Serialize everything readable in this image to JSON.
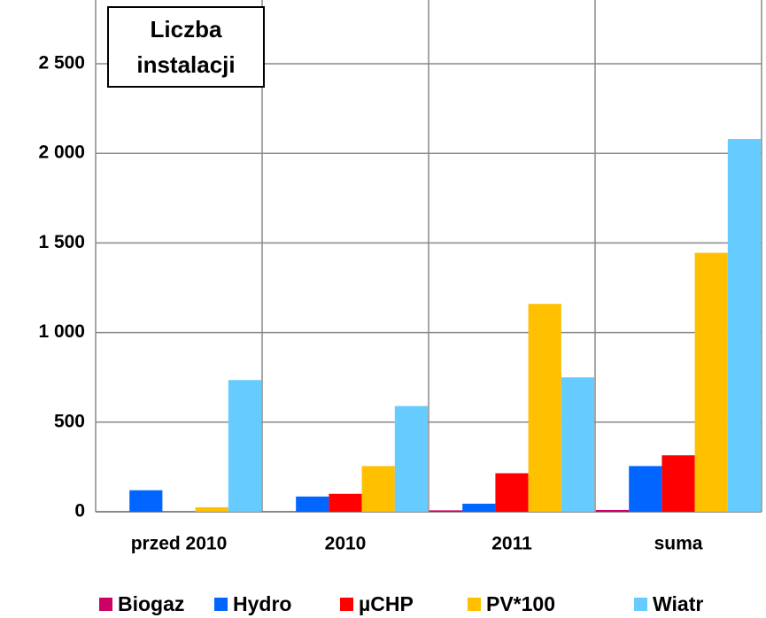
{
  "chart_data": {
    "type": "bar",
    "title": [
      "Liczba",
      "instalacji"
    ],
    "categories": [
      "przed 2010",
      "2010",
      "2011",
      "suma"
    ],
    "series": [
      {
        "name": "Biogaz",
        "color": "#cc0066",
        "values": [
          0,
          0,
          8,
          10
        ]
      },
      {
        "name": "Hydro",
        "color": "#0066ff",
        "values": [
          120,
          85,
          45,
          255
        ]
      },
      {
        "name": "µCHP",
        "color": "#ff0000",
        "values": [
          0,
          100,
          215,
          315
        ]
      },
      {
        "name": "PV*100",
        "color": "#ffc000",
        "values": [
          25,
          255,
          1160,
          1445
        ]
      },
      {
        "name": "Wiatr",
        "color": "#66ccff",
        "values": [
          735,
          590,
          750,
          2080
        ]
      }
    ],
    "ylim": [
      0,
      2500
    ],
    "yticks": [
      0,
      500,
      {
        "value": 1000,
        "label": "1 000"
      },
      {
        "value": 1500,
        "label": "1 500"
      },
      {
        "value": 2000,
        "label": "2 000"
      },
      {
        "value": 2500,
        "label": "2 500"
      }
    ],
    "grid": true,
    "legend": "bottom"
  }
}
